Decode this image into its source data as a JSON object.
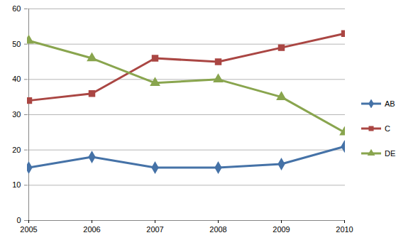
{
  "chart_data": {
    "type": "line",
    "categories": [
      "2005",
      "2006",
      "2007",
      "2008",
      "2009",
      "2010"
    ],
    "series": [
      {
        "name": "AB",
        "color": "#4572A7",
        "marker": "diamond",
        "values": [
          15,
          18,
          15,
          15,
          16,
          21
        ]
      },
      {
        "name": "C",
        "color": "#AA4643",
        "marker": "square",
        "values": [
          34,
          36,
          46,
          45,
          49,
          53
        ]
      },
      {
        "name": "DE",
        "color": "#89A54E",
        "marker": "triangle",
        "values": [
          51,
          46,
          39,
          40,
          35,
          25
        ]
      }
    ],
    "ylim": [
      0,
      60
    ],
    "yticks": [
      0,
      10,
      20,
      30,
      40,
      50,
      60
    ],
    "grid": true,
    "legend": "right"
  }
}
